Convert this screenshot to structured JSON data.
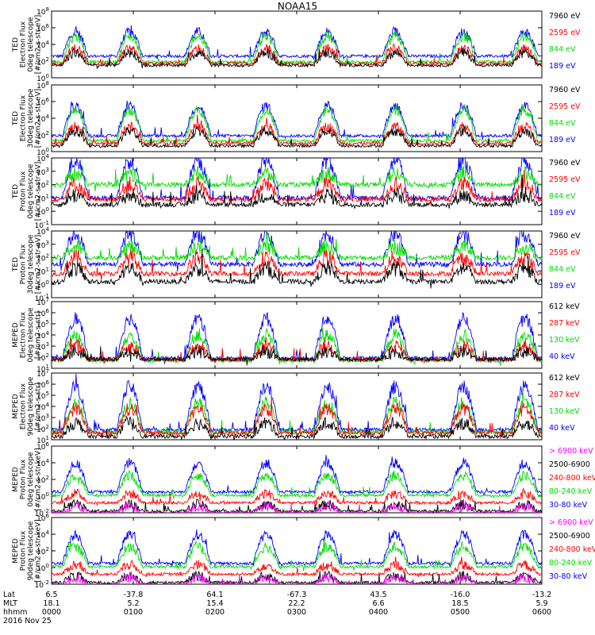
{
  "title": "NOAA15",
  "panels": [
    {
      "ylabel": [
        "TED",
        "Electron Flux",
        "0deg telescope",
        "[#/cm2-s-str-eV]"
      ],
      "yticks": [
        {
          "exp": "0",
          "frac": 1.0
        },
        {
          "exp": "2",
          "frac": 0.75
        },
        {
          "exp": "4",
          "frac": 0.5
        },
        {
          "exp": "6",
          "frac": 0.25
        },
        {
          "exp": "8",
          "frac": 0.0
        }
      ],
      "legend": [
        {
          "text": "7960 eV",
          "color": "#000000"
        },
        {
          "text": "2595 eV",
          "color": "#ff0000"
        },
        {
          "text": "844 eV",
          "color": "#00dd00"
        },
        {
          "text": "189 eV",
          "color": "#0000ff"
        }
      ]
    },
    {
      "ylabel": [
        "TED",
        "Electron Flux",
        "30deg telescope",
        "[#/cm2-s-str-eV]"
      ],
      "yticks": [
        {
          "exp": "0",
          "frac": 1.0
        },
        {
          "exp": "2",
          "frac": 0.75
        },
        {
          "exp": "4",
          "frac": 0.5
        },
        {
          "exp": "6",
          "frac": 0.25
        },
        {
          "exp": "8",
          "frac": 0.0
        }
      ],
      "legend": [
        {
          "text": "7960 eV",
          "color": "#000000"
        },
        {
          "text": "2595 eV",
          "color": "#ff0000"
        },
        {
          "text": "844 eV",
          "color": "#00dd00"
        },
        {
          "text": "189 eV",
          "color": "#0000ff"
        }
      ]
    },
    {
      "ylabel": [
        "TED",
        "Proton Flux",
        "0deg telescope",
        "[#/cm2-s-str-eV]"
      ],
      "yticks": [
        {
          "exp": "-1",
          "frac": 1.0
        },
        {
          "exp": "0",
          "frac": 0.8
        },
        {
          "exp": "1",
          "frac": 0.6
        },
        {
          "exp": "2",
          "frac": 0.4
        },
        {
          "exp": "3",
          "frac": 0.2
        },
        {
          "exp": "4",
          "frac": 0.0
        }
      ],
      "legend": [
        {
          "text": "7960 eV",
          "color": "#000000"
        },
        {
          "text": "2595 eV",
          "color": "#ff0000"
        },
        {
          "text": "844 eV",
          "color": "#00dd00"
        },
        {
          "text": "189 eV",
          "color": "#0000ff"
        }
      ]
    },
    {
      "ylabel": [
        "TED",
        "Proton Flux",
        "30deg telescope",
        "[#/cm2-s-str-eV]"
      ],
      "yticks": [
        {
          "exp": "-1",
          "frac": 1.0
        },
        {
          "exp": "0",
          "frac": 0.8
        },
        {
          "exp": "1",
          "frac": 0.6
        },
        {
          "exp": "2",
          "frac": 0.4
        },
        {
          "exp": "3",
          "frac": 0.2
        },
        {
          "exp": "4",
          "frac": 0.0
        }
      ],
      "legend": [
        {
          "text": "7960 eV",
          "color": "#000000"
        },
        {
          "text": "2595 eV",
          "color": "#ff0000"
        },
        {
          "text": "844 eV",
          "color": "#00dd00"
        },
        {
          "text": "189 eV",
          "color": "#0000ff"
        }
      ]
    },
    {
      "ylabel": [
        "MEPED",
        "Electron Flux",
        "0deg telescope",
        "[#/cm2-s-str]"
      ],
      "yticks": [
        {
          "exp": "1",
          "frac": 1.0
        },
        {
          "exp": "2",
          "frac": 0.833
        },
        {
          "exp": "3",
          "frac": 0.667
        },
        {
          "exp": "4",
          "frac": 0.5
        },
        {
          "exp": "5",
          "frac": 0.333
        },
        {
          "exp": "6",
          "frac": 0.167
        },
        {
          "exp": "7",
          "frac": 0.0
        }
      ],
      "legend": [
        {
          "text": "612 keV",
          "color": "#000000"
        },
        {
          "text": "287 keV",
          "color": "#ff0000"
        },
        {
          "text": "130 keV",
          "color": "#00dd00"
        },
        {
          "text": "40 keV",
          "color": "#0000ff"
        }
      ]
    },
    {
      "ylabel": [
        "MEPED",
        "Electron Flux",
        "90deg telescope",
        "[#/cm2-s-str]"
      ],
      "yticks": [
        {
          "exp": "1",
          "frac": 1.0
        },
        {
          "exp": "2",
          "frac": 0.833
        },
        {
          "exp": "3",
          "frac": 0.667
        },
        {
          "exp": "4",
          "frac": 0.5
        },
        {
          "exp": "5",
          "frac": 0.333
        },
        {
          "exp": "6",
          "frac": 0.167
        },
        {
          "exp": "7",
          "frac": 0.0
        }
      ],
      "legend": [
        {
          "text": "612 keV",
          "color": "#000000"
        },
        {
          "text": "287 keV",
          "color": "#ff0000"
        },
        {
          "text": "130 keV",
          "color": "#00dd00"
        },
        {
          "text": "40 keV",
          "color": "#0000ff"
        }
      ]
    },
    {
      "ylabel": [
        "MEPED",
        "Proton Flux",
        "0deg telescope",
        "[#/cm2-s-str-keV]"
      ],
      "yticks": [
        {
          "exp": "-2",
          "frac": 1.0
        },
        {
          "exp": "0",
          "frac": 0.75
        },
        {
          "exp": "2",
          "frac": 0.5
        },
        {
          "exp": "4",
          "frac": 0.25
        },
        {
          "exp": "6",
          "frac": 0.0
        }
      ],
      "legend": [
        {
          "text": "> 6900 keV",
          "color": "#ff00ff"
        },
        {
          "text": "2500-6900",
          "color": "#000000"
        },
        {
          "text": "240-800 keV",
          "color": "#ff0000"
        },
        {
          "text": "80-240 keV",
          "color": "#00dd00"
        },
        {
          "text": "30-80 keV",
          "color": "#0000ff"
        }
      ]
    },
    {
      "ylabel": [
        "MEPED",
        "Proton Flux",
        "90deg telescope",
        "[#/cm2-s-str-keV]"
      ],
      "yticks": [
        {
          "exp": "-2",
          "frac": 1.0
        },
        {
          "exp": "0",
          "frac": 0.75
        },
        {
          "exp": "2",
          "frac": 0.5
        },
        {
          "exp": "4",
          "frac": 0.25
        },
        {
          "exp": "6",
          "frac": 0.0
        }
      ],
      "legend": [
        {
          "text": "> 6900 keV",
          "color": "#ff00ff"
        },
        {
          "text": "2500-6900",
          "color": "#000000"
        },
        {
          "text": "240-800 keV",
          "color": "#ff0000"
        },
        {
          "text": "80-240 keV",
          "color": "#00dd00"
        },
        {
          "text": "30-80 keV",
          "color": "#0000ff"
        }
      ]
    }
  ],
  "xaxis": {
    "row_labels": [
      "Lat",
      "MLT",
      "hhmm"
    ],
    "ticks": [
      {
        "lat": "6.5",
        "mlt": "18.1",
        "hhmm": "0000"
      },
      {
        "lat": "-37.8",
        "mlt": "5.2",
        "hhmm": "0100"
      },
      {
        "lat": "64.1",
        "mlt": "15.4",
        "hhmm": "0200"
      },
      {
        "lat": "-67.3",
        "mlt": "22.2",
        "hhmm": "0300"
      },
      {
        "lat": "43.5",
        "mlt": "6.6",
        "hhmm": "0400"
      },
      {
        "lat": "-16.0",
        "mlt": "18.5",
        "hhmm": "0500"
      },
      {
        "lat": "-13.2",
        "mlt": "5.9",
        "hhmm": "0600"
      }
    ],
    "date": "2016 Nov 25"
  },
  "chart_data": {
    "type": "line",
    "title": "NOAA15",
    "x_unit": "UT hhmm",
    "x_ticks": [
      "0000",
      "0100",
      "0200",
      "0300",
      "0400",
      "0500",
      "0600"
    ],
    "y_scale": "log",
    "panels": [
      {
        "ylabel": "TED Electron Flux 0deg telescope [#/cm2-s-str-eV]",
        "ylim_exp": [
          0,
          8
        ],
        "series": [
          {
            "name": "7960 eV",
            "color": "#000000",
            "base_exp": 1.5,
            "peak_exp": 3.0
          },
          {
            "name": "2595 eV",
            "color": "#ff0000",
            "base_exp": 1.7,
            "peak_exp": 3.5
          },
          {
            "name": "844 eV",
            "color": "#00dd00",
            "base_exp": 1.9,
            "peak_exp": 5.0
          },
          {
            "name": "189 eV",
            "color": "#0000ff",
            "base_exp": 2.6,
            "peak_exp": 5.5
          }
        ]
      },
      {
        "ylabel": "TED Electron Flux 30deg telescope [#/cm2-s-str-eV]",
        "ylim_exp": [
          0,
          8
        ],
        "series": [
          {
            "name": "7960 eV",
            "color": "#000000",
            "base_exp": 0.7,
            "peak_exp": 2.5
          },
          {
            "name": "2595 eV",
            "color": "#ff0000",
            "base_exp": 1.0,
            "peak_exp": 3.0
          },
          {
            "name": "844 eV",
            "color": "#00dd00",
            "base_exp": 1.3,
            "peak_exp": 5.0
          },
          {
            "name": "189 eV",
            "color": "#0000ff",
            "base_exp": 1.9,
            "peak_exp": 5.5
          }
        ]
      },
      {
        "ylabel": "TED Proton Flux 0deg telescope [#/cm2-s-str-eV]",
        "ylim_exp": [
          -1,
          4
        ],
        "series": [
          {
            "name": "7960 eV",
            "color": "#000000",
            "base_exp": 0.5,
            "peak_exp": 1.2
          },
          {
            "name": "2595 eV",
            "color": "#ff0000",
            "base_exp": 0.9,
            "peak_exp": 2.0
          },
          {
            "name": "844 eV",
            "color": "#00dd00",
            "base_exp": 2.0,
            "peak_exp": 2.8
          },
          {
            "name": "189 eV",
            "color": "#0000ff",
            "base_exp": 1.0,
            "peak_exp": 3.8
          }
        ]
      },
      {
        "ylabel": "TED Proton Flux 30deg telescope [#/cm2-s-str-eV]",
        "ylim_exp": [
          -1,
          4
        ],
        "series": [
          {
            "name": "7960 eV",
            "color": "#000000",
            "base_exp": 0.2,
            "peak_exp": 1.2
          },
          {
            "name": "2595 eV",
            "color": "#ff0000",
            "base_exp": 0.8,
            "peak_exp": 2.0
          },
          {
            "name": "844 eV",
            "color": "#00dd00",
            "base_exp": 2.0,
            "peak_exp": 2.8
          },
          {
            "name": "189 eV",
            "color": "#0000ff",
            "base_exp": 1.5,
            "peak_exp": 3.8
          }
        ]
      },
      {
        "ylabel": "MEPED Electron Flux 0deg telescope [#/cm2-s-str]",
        "ylim_exp": [
          1,
          7
        ],
        "series": [
          {
            "name": "612 keV",
            "color": "#000000",
            "base_exp": 1.8,
            "peak_exp": 2.5
          },
          {
            "name": "287 keV",
            "color": "#ff0000",
            "base_exp": 1.8,
            "peak_exp": 3.0
          },
          {
            "name": "130 keV",
            "color": "#00dd00",
            "base_exp": 1.7,
            "peak_exp": 4.0
          },
          {
            "name": "40 keV",
            "color": "#0000ff",
            "base_exp": 1.9,
            "peak_exp": 5.5
          }
        ]
      },
      {
        "ylabel": "MEPED Electron Flux 90deg telescope [#/cm2-s-str]",
        "ylim_exp": [
          1,
          7
        ],
        "series": [
          {
            "name": "612 keV",
            "color": "#000000",
            "base_exp": 1.3,
            "peak_exp": 2.5
          },
          {
            "name": "287 keV",
            "color": "#ff0000",
            "base_exp": 1.6,
            "peak_exp": 3.8
          },
          {
            "name": "130 keV",
            "color": "#00dd00",
            "base_exp": 1.7,
            "peak_exp": 4.3
          },
          {
            "name": "40 keV",
            "color": "#0000ff",
            "base_exp": 1.9,
            "peak_exp": 5.8
          }
        ]
      },
      {
        "ylabel": "MEPED Proton Flux 0deg telescope [#/cm2-s-str-keV]",
        "ylim_exp": [
          -2,
          6
        ],
        "series": [
          {
            "name": "> 6900 keV",
            "color": "#ff00ff",
            "base_exp": -2.0,
            "peak_exp": -1.2
          },
          {
            "name": "2500-6900",
            "color": "#000000",
            "base_exp": -1.8,
            "peak_exp": -1.0
          },
          {
            "name": "240-800 keV",
            "color": "#ff0000",
            "base_exp": -0.8,
            "peak_exp": 0.3
          },
          {
            "name": "80-240 keV",
            "color": "#00dd00",
            "base_exp": 0.1,
            "peak_exp": 2.5
          },
          {
            "name": "30-80 keV",
            "color": "#0000ff",
            "base_exp": 0.5,
            "peak_exp": 4.0
          }
        ]
      },
      {
        "ylabel": "MEPED Proton Flux 90deg telescope [#/cm2-s-str-keV]",
        "ylim_exp": [
          -2,
          6
        ],
        "series": [
          {
            "name": "> 6900 keV",
            "color": "#ff00ff",
            "base_exp": -2.0,
            "peak_exp": -1.2
          },
          {
            "name": "2500-6900",
            "color": "#000000",
            "base_exp": -1.8,
            "peak_exp": -1.0
          },
          {
            "name": "240-800 keV",
            "color": "#ff0000",
            "base_exp": -0.8,
            "peak_exp": 0.3
          },
          {
            "name": "80-240 keV",
            "color": "#00dd00",
            "base_exp": 0.1,
            "peak_exp": 2.5
          },
          {
            "name": "30-80 keV",
            "color": "#0000ff",
            "base_exp": 0.5,
            "peak_exp": 4.0
          }
        ]
      }
    ],
    "passes_hhmm": [
      {
        "start": "0010",
        "end": "0025"
      },
      {
        "start": "0050",
        "end": "0105"
      },
      {
        "start": "0140",
        "end": "0155"
      },
      {
        "start": "0230",
        "end": "0245"
      },
      {
        "start": "0315",
        "end": "0330"
      },
      {
        "start": "0405",
        "end": "0420"
      },
      {
        "start": "0455",
        "end": "0510"
      },
      {
        "start": "0540",
        "end": "0555"
      }
    ]
  }
}
